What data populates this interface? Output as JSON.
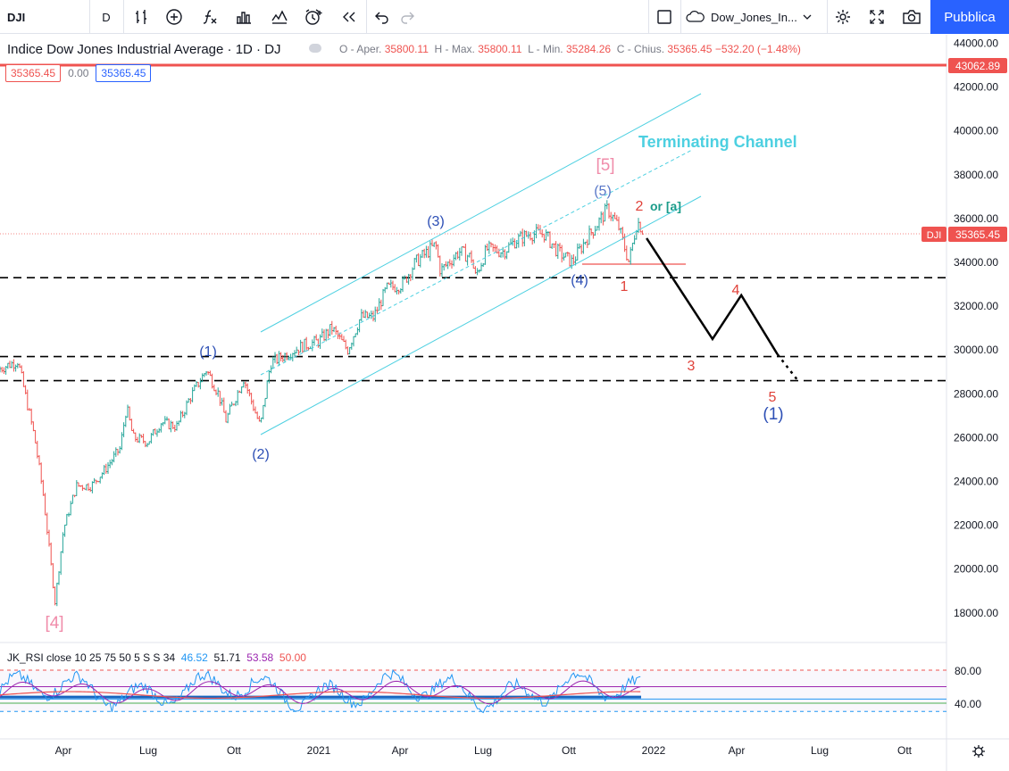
{
  "toolbar": {
    "symbol": "DJI",
    "interval": "D",
    "layout_name": "Dow_Jones_In...",
    "publish_label": "Pubblica"
  },
  "legend": {
    "title": "Indice Dow Jones Industrial Average · 1D · DJ",
    "open_label": "O - Aper.",
    "open": "35800.11",
    "high_label": "H - Max.",
    "high": "35800.11",
    "low_label": "L - Min.",
    "low": "35284.26",
    "close_label": "C - Chius.",
    "close": "35365.45",
    "change": "−532.20 (−1.48%)"
  },
  "pills": {
    "p1": "35365.45",
    "p2": "0.00",
    "p3": "35365.45"
  },
  "rsi": {
    "name": "JK_RSI close 10 25 75 50 5 S S 34",
    "v1": "46.52",
    "v2": "51.71",
    "v3": "53.58",
    "v4": "50.00",
    "axis_labels": [
      "80.00",
      "40.00"
    ]
  },
  "price_tags": {
    "red_level": "43062.89",
    "symbol": "DJI",
    "last": "35365.45"
  },
  "colors": {
    "up": "#26a69a",
    "down": "#ef5350",
    "channel": "#4dd0e1",
    "wave_blue": "#2d4fb5",
    "wave_red": "#e0423a",
    "wave_pink": "#f08caa",
    "accent": "#2962ff"
  },
  "chart_data": {
    "type": "line",
    "title": "Indice Dow Jones Industrial Average · 1D · DJ",
    "xlabel": "",
    "ylabel": "",
    "ylim": [
      16000,
      44800
    ],
    "y_ticks": [
      18000,
      20000,
      22000,
      24000,
      26000,
      28000,
      30000,
      32000,
      34000,
      36000,
      38000,
      40000,
      42000,
      44000
    ],
    "x_ticks": [
      "Apr",
      "Lug",
      "Ott",
      "2021",
      "Apr",
      "Lug",
      "Ott",
      "2022",
      "Apr",
      "Lug",
      "Ott"
    ],
    "grid": false,
    "series": [
      {
        "x": [
          "2020-01-15",
          "2020-02-12",
          "2020-03-01",
          "2020-03-10",
          "2020-03-23",
          "2020-04-01",
          "2020-04-15",
          "2020-05-01",
          "2020-05-15",
          "2020-06-01",
          "2020-06-08",
          "2020-06-15",
          "2020-07-01",
          "2020-07-15",
          "2020-08-01",
          "2020-08-15",
          "2020-09-02",
          "2020-09-15",
          "2020-09-23",
          "2020-10-12",
          "2020-10-30",
          "2020-11-10",
          "2020-12-01",
          "2020-12-15",
          "2021-01-01",
          "2021-01-15",
          "2021-02-01",
          "2021-02-15",
          "2021-03-01",
          "2021-03-15",
          "2021-04-01",
          "2021-04-15",
          "2021-05-07",
          "2021-05-12",
          "2021-06-01",
          "2021-06-15",
          "2021-06-18",
          "2021-07-01",
          "2021-07-19",
          "2021-08-01",
          "2021-08-16",
          "2021-09-01",
          "2021-09-15",
          "2021-10-01",
          "2021-10-15",
          "2021-11-01",
          "2021-11-08",
          "2021-11-20",
          "2021-12-01",
          "2021-12-10",
          "2021-12-17"
        ],
        "values": [
          29000,
          29500,
          26000,
          23500,
          18500,
          21800,
          23800,
          23800,
          24500,
          25500,
          27400,
          26000,
          25800,
          26700,
          26500,
          27800,
          29100,
          28000,
          26800,
          28700,
          26500,
          29400,
          29900,
          30200,
          30400,
          31000,
          30000,
          31500,
          31500,
          32800,
          33000,
          34000,
          34800,
          33600,
          34500,
          34200,
          33300,
          34600,
          34500,
          35000,
          35300,
          35300,
          34500,
          34000,
          35000,
          36000,
          36450,
          35600,
          34000,
          35900,
          35365
        ]
      }
    ],
    "annotations": [
      {
        "text": "Terminating Channel"
      },
      {
        "text": "[5]"
      },
      {
        "text": "(5)"
      },
      {
        "text": "2"
      },
      {
        "text": "or [a]"
      },
      {
        "text": "(3)"
      },
      {
        "text": "(4)"
      },
      {
        "text": "1"
      },
      {
        "text": "(1)"
      },
      {
        "text": "(2)"
      },
      {
        "text": "[4]"
      },
      {
        "text": "4"
      },
      {
        "text": "3"
      },
      {
        "text": "5"
      },
      {
        "text": "(1)"
      }
    ],
    "horizontal_levels": [
      33300,
      29700,
      28600
    ],
    "projection": {
      "x": [
        "2021-12-20",
        "2022-03-01",
        "2022-04-01",
        "2022-05-10",
        "2022-06-01"
      ],
      "values": [
        35100,
        30500,
        32500,
        29800,
        28600
      ]
    }
  }
}
